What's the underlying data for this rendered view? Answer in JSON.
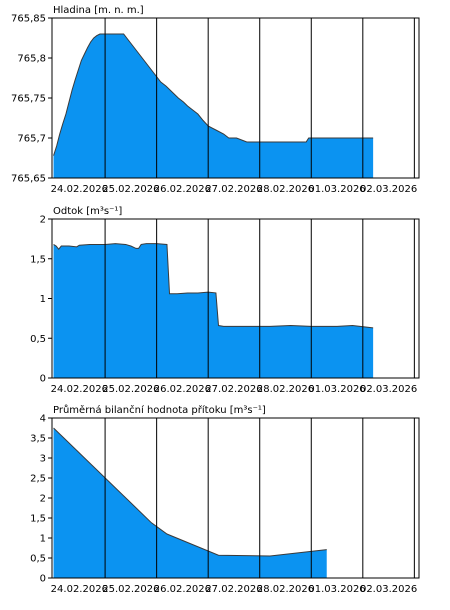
{
  "colors": {
    "fill": "#0b93f1",
    "stroke": "#3a3a3a",
    "axis": "#000000",
    "grid": "#000000"
  },
  "chart_data": [
    {
      "type": "area",
      "title": "Hladina [m. n. m.]",
      "xlabel": "",
      "ylabel": "",
      "x_labels": [
        "24.02.2026",
        "25.02.2026",
        "26.02.2026",
        "27.02.2026",
        "28.02.2026",
        "01.03.2026",
        "02.03.2026"
      ],
      "y_ticks": [
        "765,85",
        "765,8",
        "765,75",
        "765,7",
        "765,65"
      ],
      "y_tick_values": [
        765.85,
        765.8,
        765.75,
        765.7,
        765.65
      ],
      "xlim": [
        -0.03,
        7.09
      ],
      "ylim": [
        765.65,
        765.85
      ],
      "grid": true,
      "x": [
        0,
        0.06,
        0.12,
        0.18,
        0.24,
        0.3,
        0.36,
        0.42,
        0.48,
        0.54,
        0.6,
        0.66,
        0.72,
        0.78,
        0.84,
        0.9,
        0.96,
        1.02,
        1.08,
        1.14,
        1.24,
        1.3,
        1.36,
        1.42,
        1.48,
        1.54,
        1.6,
        1.66,
        1.72,
        1.78,
        1.84,
        1.9,
        1.96,
        2.02,
        2.08,
        2.18,
        2.26,
        2.34,
        2.42,
        2.52,
        2.6,
        2.7,
        2.8,
        2.9,
        3.0,
        3.15,
        3.3,
        3.4,
        3.55,
        3.75,
        4.0,
        4.5,
        4.9,
        4.95,
        5.0,
        5.5,
        6.2
      ],
      "values": [
        765.678,
        765.69,
        765.705,
        765.718,
        765.73,
        765.745,
        765.76,
        765.773,
        765.785,
        765.797,
        765.805,
        765.813,
        765.82,
        765.825,
        765.828,
        765.83,
        765.83,
        765.83,
        765.83,
        765.83,
        765.83,
        765.83,
        765.83,
        765.825,
        765.82,
        765.815,
        765.81,
        765.805,
        765.8,
        765.795,
        765.79,
        765.785,
        765.78,
        765.775,
        765.77,
        765.765,
        765.76,
        765.755,
        765.75,
        765.745,
        765.74,
        765.735,
        765.73,
        765.722,
        765.715,
        765.71,
        765.705,
        765.7,
        765.7,
        765.695,
        765.695,
        765.695,
        765.695,
        765.7,
        765.7,
        765.7,
        765.7
      ]
    },
    {
      "type": "area",
      "title": "Odtok [m³s⁻¹]",
      "xlabel": "",
      "ylabel": "",
      "x_labels": [
        "24.02.2026",
        "25.02.2026",
        "26.02.2026",
        "27.02.2026",
        "28.02.2026",
        "01.03.2026",
        "02.03.2026"
      ],
      "y_ticks": [
        "2",
        "1,5",
        "1",
        "0,5",
        "0"
      ],
      "y_tick_values": [
        2,
        1.5,
        1,
        0.5,
        0
      ],
      "xlim": [
        -0.03,
        7.09
      ],
      "ylim": [
        0,
        2
      ],
      "grid": true,
      "x": [
        0,
        0.05,
        0.1,
        0.15,
        0.3,
        0.45,
        0.5,
        0.7,
        1.0,
        1.2,
        1.4,
        1.5,
        1.6,
        1.65,
        1.7,
        1.8,
        2.0,
        2.2,
        2.25,
        2.3,
        2.4,
        2.6,
        2.8,
        3.0,
        3.15,
        3.2,
        3.3,
        3.6,
        4.0,
        4.2,
        4.6,
        5.0,
        5.5,
        5.8,
        6.2
      ],
      "values": [
        1.68,
        1.66,
        1.62,
        1.66,
        1.66,
        1.65,
        1.67,
        1.68,
        1.68,
        1.69,
        1.68,
        1.66,
        1.63,
        1.63,
        1.68,
        1.69,
        1.69,
        1.68,
        1.06,
        1.06,
        1.06,
        1.07,
        1.07,
        1.08,
        1.07,
        0.66,
        0.65,
        0.65,
        0.65,
        0.65,
        0.66,
        0.65,
        0.65,
        0.66,
        0.63
      ]
    },
    {
      "type": "area",
      "title": "Průměrná bilanční hodnota přítoku [m³s⁻¹]",
      "xlabel": "",
      "ylabel": "",
      "x_labels": [
        "24.02.2026",
        "25.02.2026",
        "26.02.2026",
        "27.02.2026",
        "28.02.2026",
        "01.03.2026",
        "02.03.2026"
      ],
      "y_ticks": [
        "4",
        "3,5",
        "3",
        "2,5",
        "2",
        "1,5",
        "1",
        "0,5",
        "0"
      ],
      "y_tick_values": [
        4,
        3.5,
        3,
        2.5,
        2,
        1.5,
        1,
        0.5,
        0
      ],
      "xlim": [
        -0.03,
        7.09
      ],
      "ylim": [
        0,
        4
      ],
      "grid": true,
      "x": [
        0,
        1.9,
        2.2,
        3.2,
        4.2,
        5.3
      ],
      "values": [
        3.75,
        1.38,
        1.1,
        0.57,
        0.55,
        0.71
      ]
    }
  ]
}
